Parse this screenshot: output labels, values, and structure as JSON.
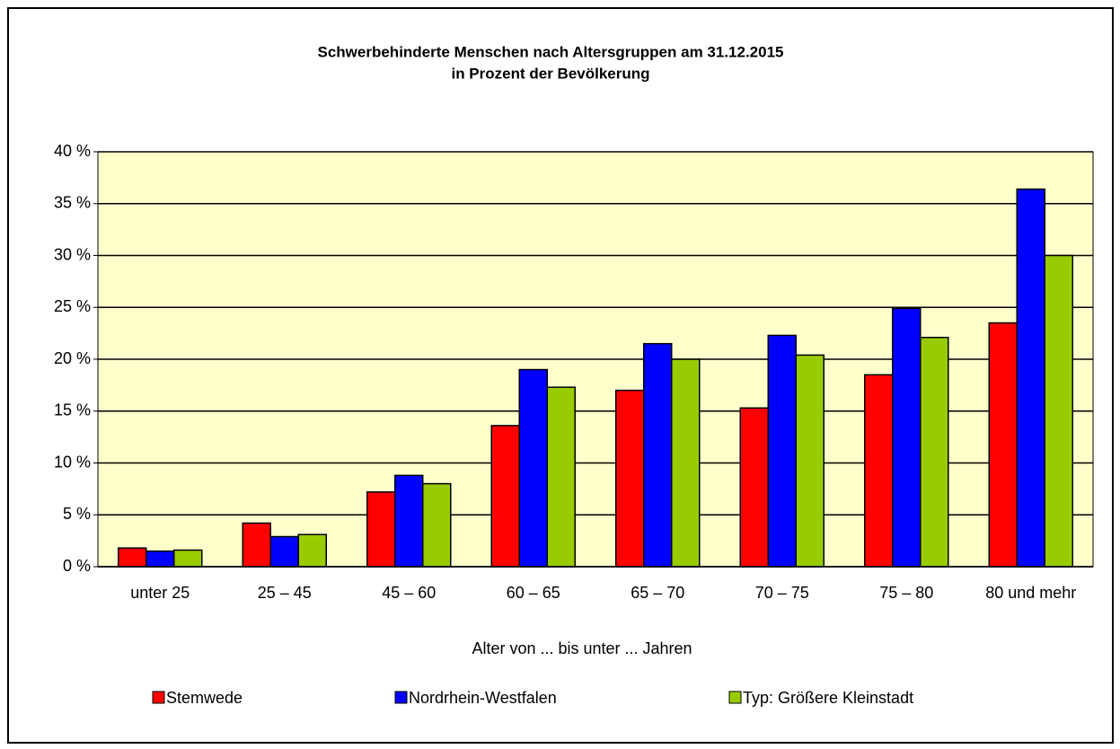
{
  "chart_data": {
    "type": "bar",
    "title": "Schwerbehinderte Menschen nach Altersgruppen am 31.12.2015",
    "subtitle": "in Prozent der Bevölkerung",
    "x_label": "Alter von ... bis unter ... Jahren",
    "categories": [
      "unter 25",
      "25 – 45",
      "45 – 60",
      "60 – 65",
      "65 – 70",
      "70 – 75",
      "75 – 80",
      "80 und mehr"
    ],
    "series": [
      {
        "name": "Stemwede",
        "color": "#ff0000",
        "values": [
          1.8,
          4.2,
          7.2,
          13.6,
          17.0,
          15.3,
          18.5,
          23.5
        ]
      },
      {
        "name": "Nordrhein-Westfalen",
        "color": "#0000ff",
        "values": [
          1.5,
          2.9,
          8.8,
          19.0,
          21.5,
          22.3,
          24.9,
          36.4
        ]
      },
      {
        "name": "Typ: Größere Kleinstadt",
        "color": "#99cc00",
        "values": [
          1.6,
          3.1,
          8.0,
          17.3,
          20.0,
          20.4,
          22.1,
          30.0
        ]
      }
    ],
    "ylim": [
      0,
      40
    ],
    "yticks": [
      {
        "value": 0,
        "label": "0 %"
      },
      {
        "value": 5,
        "label": "5 %"
      },
      {
        "value": 10,
        "label": "10 %"
      },
      {
        "value": 15,
        "label": "15 %"
      },
      {
        "value": 20,
        "label": "20 %"
      },
      {
        "value": 25,
        "label": "25 %"
      },
      {
        "value": 30,
        "label": "30 %"
      },
      {
        "value": 35,
        "label": "35 %"
      },
      {
        "value": 40,
        "label": "40 %"
      }
    ],
    "grid": true,
    "plot_background": "#ffffcc",
    "legend": "bottom"
  }
}
